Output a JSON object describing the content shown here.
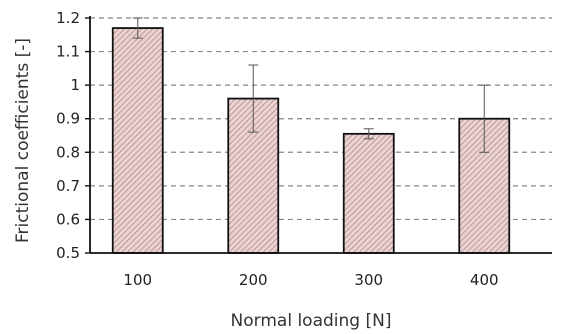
{
  "chart_data": {
    "type": "bar",
    "title": "",
    "xlabel": "Normal loading [N]",
    "ylabel": "Frictional coefficients [-]",
    "categories": [
      "100",
      "200",
      "300",
      "400"
    ],
    "values": [
      1.17,
      0.96,
      0.855,
      0.9
    ],
    "errors": [
      0.03,
      0.1,
      0.015,
      0.1
    ],
    "ylim": [
      0.5,
      1.2
    ],
    "yticks": [
      "0.5",
      "0.6",
      "0.7",
      "0.8",
      "0.9",
      "1",
      "1.1",
      "1.2"
    ],
    "grid": true,
    "legend": "none",
    "colors": {
      "bar_fill": "#e9d3d3",
      "bar_hatch": "#b98989",
      "bar_stroke": "#111111",
      "grid": "#888888",
      "axis": "#111111",
      "error_bar": "#555555"
    }
  }
}
